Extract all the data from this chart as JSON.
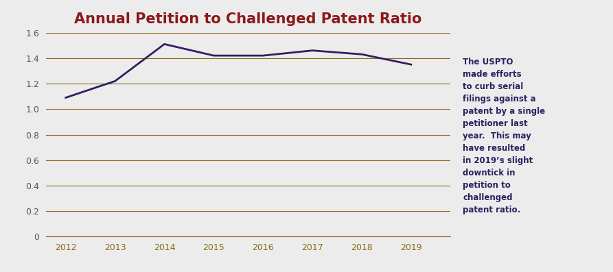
{
  "title": "Annual Petition to Challenged Patent Ratio",
  "title_color": "#8B1A1A",
  "title_fontsize": 15,
  "years": [
    2012,
    2013,
    2014,
    2015,
    2016,
    2017,
    2018,
    2019
  ],
  "values": [
    1.09,
    1.22,
    1.51,
    1.42,
    1.42,
    1.46,
    1.43,
    1.35
  ],
  "line_color": "#2E2060",
  "line_width": 2.0,
  "ylim": [
    0,
    1.6
  ],
  "yticks": [
    0,
    0.2,
    0.4,
    0.6,
    0.8,
    1.0,
    1.2,
    1.4,
    1.6
  ],
  "grid_color": "#8B6914",
  "grid_linewidth": 0.8,
  "background_color": "#ECECEC",
  "plot_bg_color": "#ECECEC",
  "annotation": "The USPTO\nmade efforts\nto curb serial\nfilings against a\npatent by a single\npetitioner last\nyear.  This may\nhave resulted\nin 2019’s slight\ndowntick in\npetition to\nchallenged\npatent ratio.",
  "annotation_color": "#2E2060",
  "annotation_fontsize": 8.5,
  "tick_color": "#8B6914",
  "ytick_color": "#555555",
  "tick_fontsize": 9
}
